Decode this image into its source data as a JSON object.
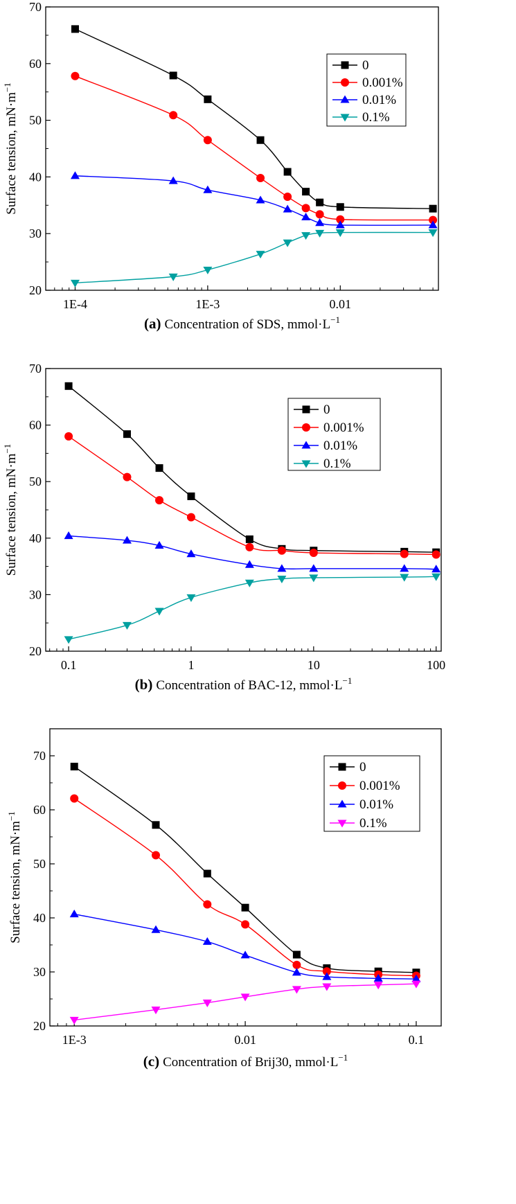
{
  "chart_data": [
    {
      "type": "line",
      "panel_label": "(a)",
      "caption": "Concentration of SDS, mmol·L",
      "caption_sup": "−1",
      "ylabel": "Surface tension, mN·m",
      "ylabel_sup": "−1",
      "xscale": "log",
      "xlim": [
        6e-05,
        0.055
      ],
      "ylim": [
        20,
        70
      ],
      "yticks": [
        20,
        30,
        40,
        50,
        60,
        70
      ],
      "ytick_labels": [
        "20",
        "30",
        "40",
        "50",
        "60",
        "70"
      ],
      "xticks": [
        0.0001,
        0.001,
        0.01
      ],
      "xtick_labels": [
        "1E-4",
        "1E-3",
        "0.01"
      ],
      "legend_position": "top-right",
      "x": [
        0.0001,
        0.00055,
        0.001,
        0.0025,
        0.004,
        0.0055,
        0.007,
        0.01,
        0.05
      ],
      "series": [
        {
          "name": "0",
          "color": "#000000",
          "marker": "square",
          "values": [
            66.1,
            57.9,
            53.7,
            46.5,
            40.9,
            37.4,
            35.5,
            34.7,
            34.4
          ]
        },
        {
          "name": "0.001%",
          "color": "#ff0000",
          "marker": "circle",
          "values": [
            57.8,
            50.9,
            46.5,
            39.8,
            36.5,
            34.5,
            33.4,
            32.5,
            32.4
          ]
        },
        {
          "name": "0.01%",
          "color": "#0000ff",
          "marker": "triangle-up",
          "values": [
            40.2,
            39.3,
            37.7,
            35.9,
            34.3,
            32.9,
            31.9,
            31.5,
            31.5
          ]
        },
        {
          "name": "0.1%",
          "color": "#00a0a0",
          "marker": "triangle-down",
          "values": [
            21.3,
            22.4,
            23.6,
            26.4,
            28.4,
            29.7,
            30.1,
            30.2,
            30.2
          ]
        }
      ]
    },
    {
      "type": "line",
      "panel_label": "(b)",
      "caption": "Concentration of BAC-12, mmol·L",
      "caption_sup": "−1",
      "ylabel": "Surface tension, mN·m",
      "ylabel_sup": "−1",
      "xscale": "log",
      "xlim": [
        0.065,
        110
      ],
      "ylim": [
        20,
        70
      ],
      "yticks": [
        20,
        30,
        40,
        50,
        60,
        70
      ],
      "ytick_labels": [
        "20",
        "30",
        "40",
        "50",
        "60",
        "70"
      ],
      "xticks": [
        0.1,
        1,
        10,
        100
      ],
      "xtick_labels": [
        "0.1",
        "1",
        "10",
        "100"
      ],
      "legend_position": "top-right",
      "x": [
        0.1,
        0.3,
        0.55,
        1,
        3,
        5.5,
        10,
        55,
        100
      ],
      "series": [
        {
          "name": "0",
          "color": "#000000",
          "marker": "square",
          "values": [
            66.9,
            58.4,
            52.4,
            47.4,
            39.8,
            38.1,
            37.8,
            37.6,
            37.5
          ]
        },
        {
          "name": "0.001%",
          "color": "#ff0000",
          "marker": "circle",
          "values": [
            58.0,
            50.8,
            46.7,
            43.7,
            38.4,
            37.8,
            37.4,
            37.2,
            37.1
          ]
        },
        {
          "name": "0.01%",
          "color": "#0000ff",
          "marker": "triangle-up",
          "values": [
            40.4,
            39.6,
            38.7,
            37.2,
            35.3,
            34.6,
            34.6,
            34.6,
            34.5
          ]
        },
        {
          "name": "0.1%",
          "color": "#00a0a0",
          "marker": "triangle-down",
          "values": [
            22.1,
            24.6,
            27.1,
            29.5,
            32.1,
            32.8,
            33.0,
            33.1,
            33.2
          ]
        }
      ]
    },
    {
      "type": "line",
      "panel_label": "(c)",
      "caption": "Concentration of Brij30, mmol·L",
      "caption_sup": "−1",
      "ylabel": "Surface tension, mN·m",
      "ylabel_sup": "−1",
      "xscale": "log",
      "xlim": [
        0.00072,
        0.14
      ],
      "ylim": [
        20,
        75
      ],
      "yticks": [
        20,
        30,
        40,
        50,
        60,
        70
      ],
      "ytick_labels": [
        "20",
        "30",
        "40",
        "50",
        "60",
        "70"
      ],
      "xticks": [
        0.001,
        0.01,
        0.1
      ],
      "xtick_labels": [
        "1E-3",
        "0.01",
        "0.1"
      ],
      "legend_position": "top-right",
      "x": [
        0.001,
        0.003,
        0.006,
        0.01,
        0.02,
        0.03,
        0.06,
        0.1
      ],
      "series": [
        {
          "name": "0",
          "color": "#000000",
          "marker": "square",
          "values": [
            68.0,
            57.2,
            48.2,
            41.9,
            33.2,
            30.7,
            30.1,
            29.9
          ]
        },
        {
          "name": "0.001%",
          "color": "#ff0000",
          "marker": "circle",
          "values": [
            62.1,
            51.6,
            42.5,
            38.8,
            31.3,
            30.1,
            29.5,
            29.3
          ]
        },
        {
          "name": "0.01%",
          "color": "#0000ff",
          "marker": "triangle-up",
          "values": [
            40.7,
            37.8,
            35.6,
            33.1,
            29.9,
            29.1,
            28.8,
            28.7
          ]
        },
        {
          "name": "0.1%",
          "color": "#ff00ff",
          "marker": "triangle-down",
          "values": [
            21.1,
            23.0,
            24.3,
            25.4,
            26.8,
            27.3,
            27.6,
            27.8
          ]
        }
      ]
    }
  ]
}
